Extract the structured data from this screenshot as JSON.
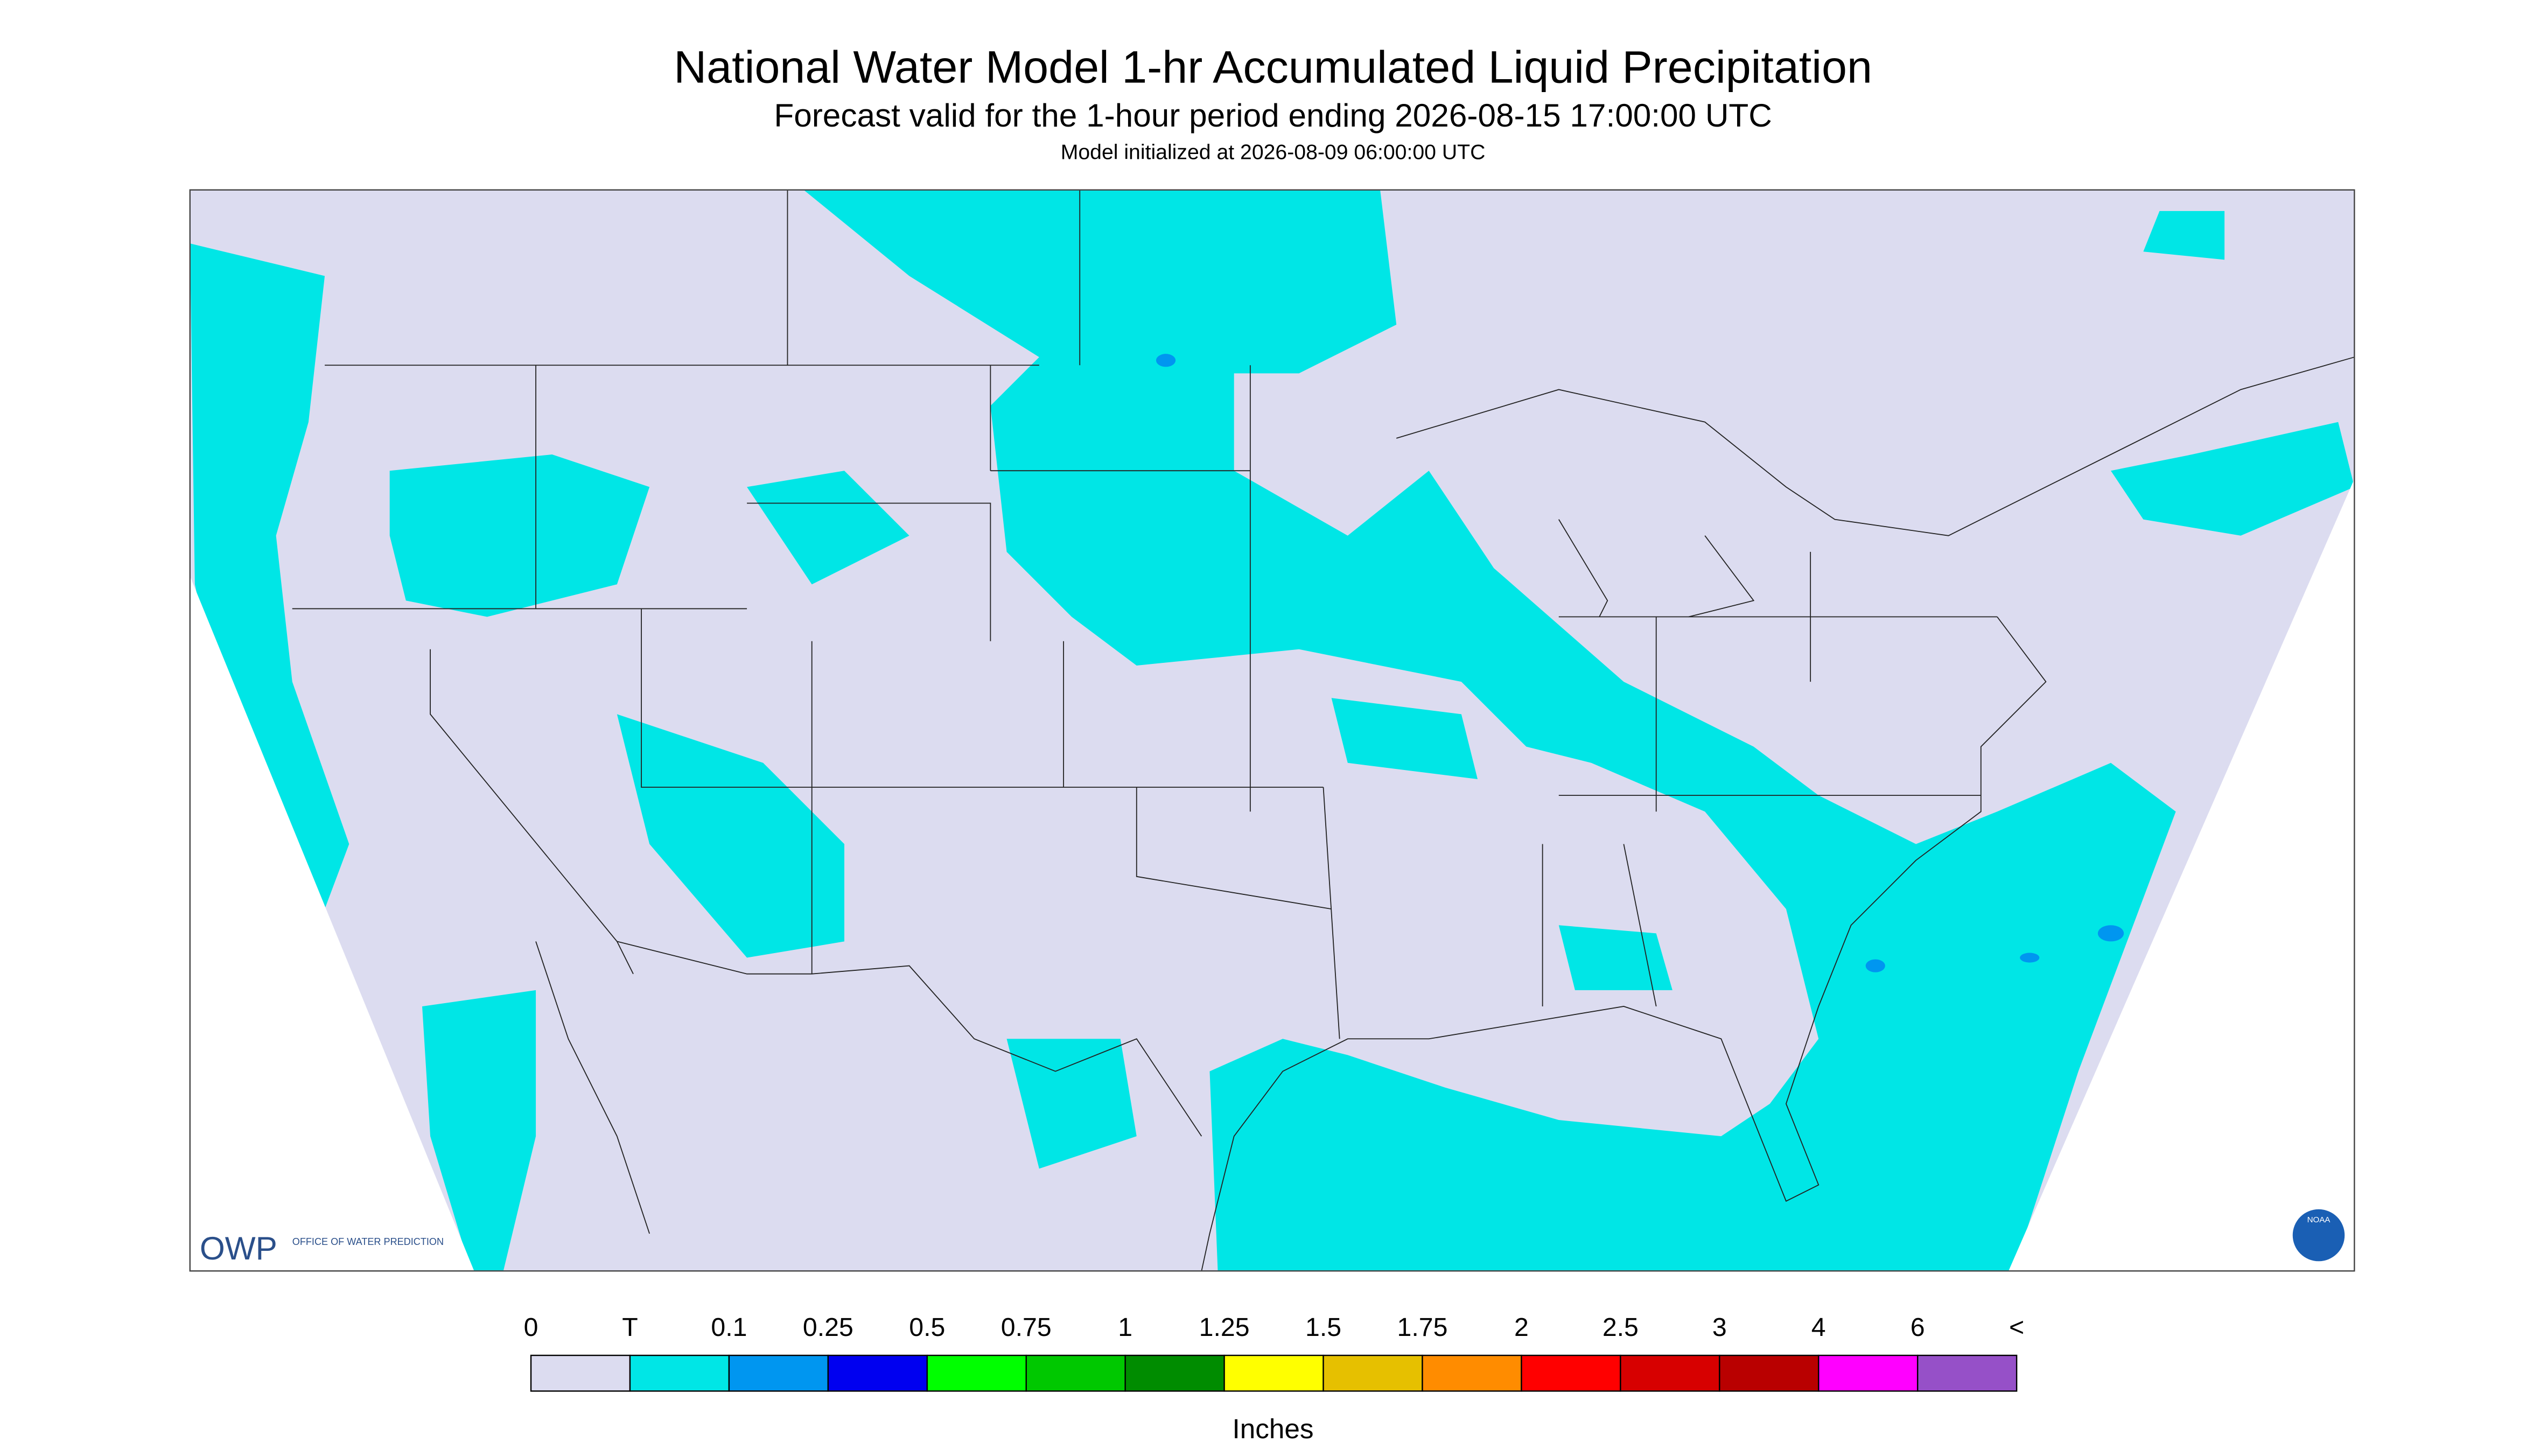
{
  "header": {
    "title": "National Water Model 1-hr Accumulated Liquid Precipitation",
    "subtitle": "Forecast valid for the 1-hour period ending 2026-08-15 17:00:00 UTC",
    "initialized": "Model initialized at 2026-08-09 06:00:00 UTC"
  },
  "map": {
    "background": "#dcdcf0",
    "precip_color": "#00e6e6"
  },
  "logos": {
    "owp": "OWP",
    "owp_text": "OFFICE OF WATER PREDICTION",
    "noaa": "NOAA"
  },
  "legend": {
    "labels": [
      "0",
      "T",
      "0.1",
      "0.25",
      "0.5",
      "0.75",
      "1",
      "1.25",
      "1.5",
      "1.75",
      "2",
      "2.5",
      "3",
      "4",
      "6",
      "<"
    ],
    "colors": [
      "#dcdcf0",
      "#00e6e6",
      "#0096f0",
      "#0000f0",
      "#00ff00",
      "#00c800",
      "#008c00",
      "#ffff00",
      "#e6c000",
      "#ff8c00",
      "#ff0000",
      "#d70000",
      "#b90000",
      "#ff00ff",
      "#9650c8"
    ],
    "unit": "Inches"
  }
}
